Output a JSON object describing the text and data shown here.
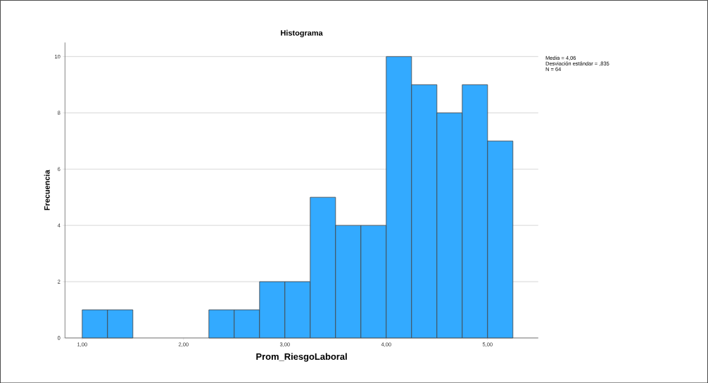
{
  "chart_data": {
    "type": "histogram",
    "title": "Histograma",
    "xlabel": "Prom_RiesgoLaboral",
    "ylabel": "Frecuencia",
    "bins": [
      1.0,
      1.25,
      1.5,
      1.75,
      2.0,
      2.25,
      2.5,
      2.75,
      3.0,
      3.25,
      3.5,
      3.75,
      4.0,
      4.25,
      4.5,
      4.75,
      5.0,
      5.25
    ],
    "values": [
      1,
      1,
      0,
      0,
      0,
      1,
      1,
      2,
      2,
      5,
      4,
      4,
      10,
      9,
      8,
      9,
      7
    ],
    "color": "#33aaff",
    "xlim": [
      0.83,
      5.5
    ],
    "ylim": [
      0,
      10.5
    ],
    "xticks": [
      {
        "value": 1,
        "label": "1,00"
      },
      {
        "value": 2,
        "label": "2,00"
      },
      {
        "value": 3,
        "label": "3,00"
      },
      {
        "value": 4,
        "label": "4,00"
      },
      {
        "value": 5,
        "label": "5,00"
      }
    ],
    "yticks": [
      0,
      2,
      4,
      6,
      8,
      10
    ],
    "grid": "y",
    "annotations": [
      "Media = 4,06",
      "Desviación estándar = ,835",
      "N = 64"
    ]
  }
}
